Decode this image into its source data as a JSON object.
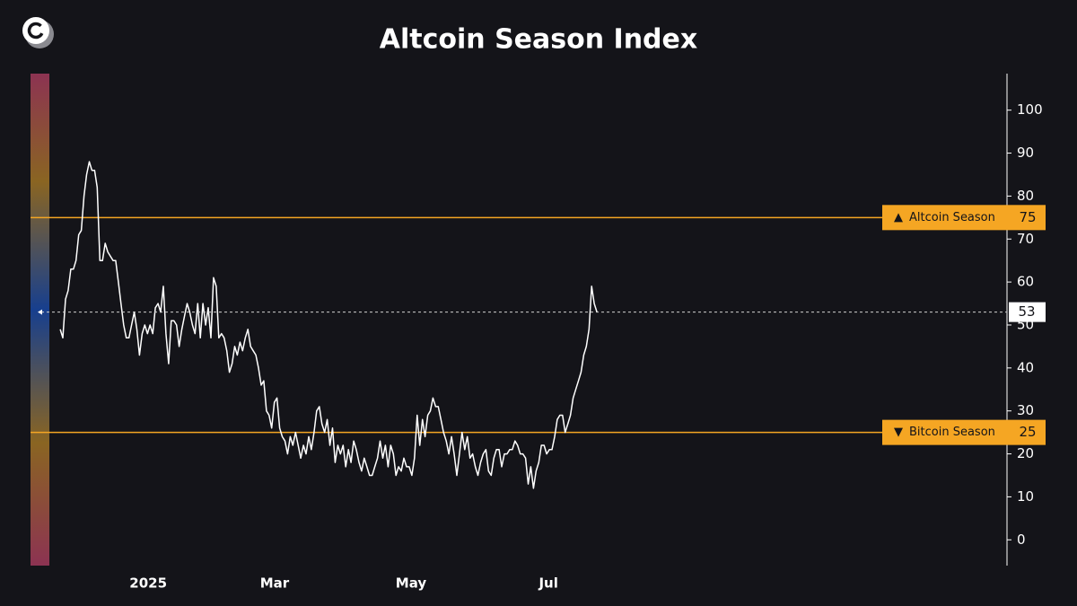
{
  "chart_data": {
    "type": "line",
    "title": "Altcoin Season Index",
    "color": "#ffffff",
    "values": [
      49,
      47,
      56,
      58,
      63,
      63,
      65,
      71,
      72,
      80,
      85,
      88,
      86,
      86,
      82,
      65,
      65,
      69,
      67,
      66,
      65,
      65,
      60,
      55,
      50,
      47,
      47,
      50,
      53,
      49,
      43,
      48,
      50,
      48,
      50,
      48,
      54,
      55,
      53,
      59,
      48,
      41,
      51,
      51,
      50,
      45,
      49,
      52,
      55,
      53,
      50,
      48,
      55,
      47,
      55,
      50,
      54,
      47,
      61,
      59,
      47,
      48,
      47,
      44,
      39,
      41,
      45,
      43,
      46,
      44,
      47,
      49,
      45,
      44,
      43,
      40,
      36,
      37,
      30,
      29,
      26,
      32,
      33,
      26,
      24,
      23,
      20,
      24,
      22,
      25,
      22,
      19,
      22,
      20,
      24,
      21,
      25,
      30,
      31,
      27,
      25,
      28,
      22,
      26,
      18,
      22,
      20,
      22,
      17,
      21,
      18,
      23,
      21,
      18,
      16,
      19,
      17,
      15,
      15,
      17,
      19,
      23,
      19,
      22,
      17,
      22,
      20,
      15,
      17,
      16,
      19,
      17,
      17,
      15,
      19,
      29,
      22,
      28,
      24,
      29,
      30,
      33,
      31,
      31,
      28,
      25,
      23,
      20,
      24,
      20,
      15,
      20,
      25,
      21,
      24,
      19,
      20,
      17,
      15,
      18,
      20,
      21,
      16,
      15,
      19,
      21,
      21,
      17,
      20,
      20,
      21,
      21,
      23,
      22,
      20,
      20,
      19,
      13,
      17,
      12,
      16,
      18,
      22,
      22,
      20,
      21,
      21,
      24,
      28,
      29,
      29,
      25,
      27,
      29,
      33,
      35,
      37,
      39,
      43,
      45,
      49,
      59,
      55,
      53
    ],
    "xlim": [
      -2.4,
      358.1
    ],
    "xticks": [
      {
        "value": 33.3,
        "label": "2025"
      },
      {
        "value": 81.1,
        "label": "Mar"
      },
      {
        "value": 132.7,
        "label": "May"
      },
      {
        "value": 184.7,
        "label": "Jul"
      }
    ],
    "ylim": [
      -6,
      108.5
    ],
    "yticks": [
      0,
      10,
      20,
      30,
      40,
      50,
      60,
      70,
      80,
      90,
      100
    ],
    "reference_color": "#f5a623",
    "annotations": [
      {
        "label": "Altcoin Season",
        "value": 75
      },
      {
        "label": "Bitcoin Season",
        "value": 25
      }
    ]
  }
}
